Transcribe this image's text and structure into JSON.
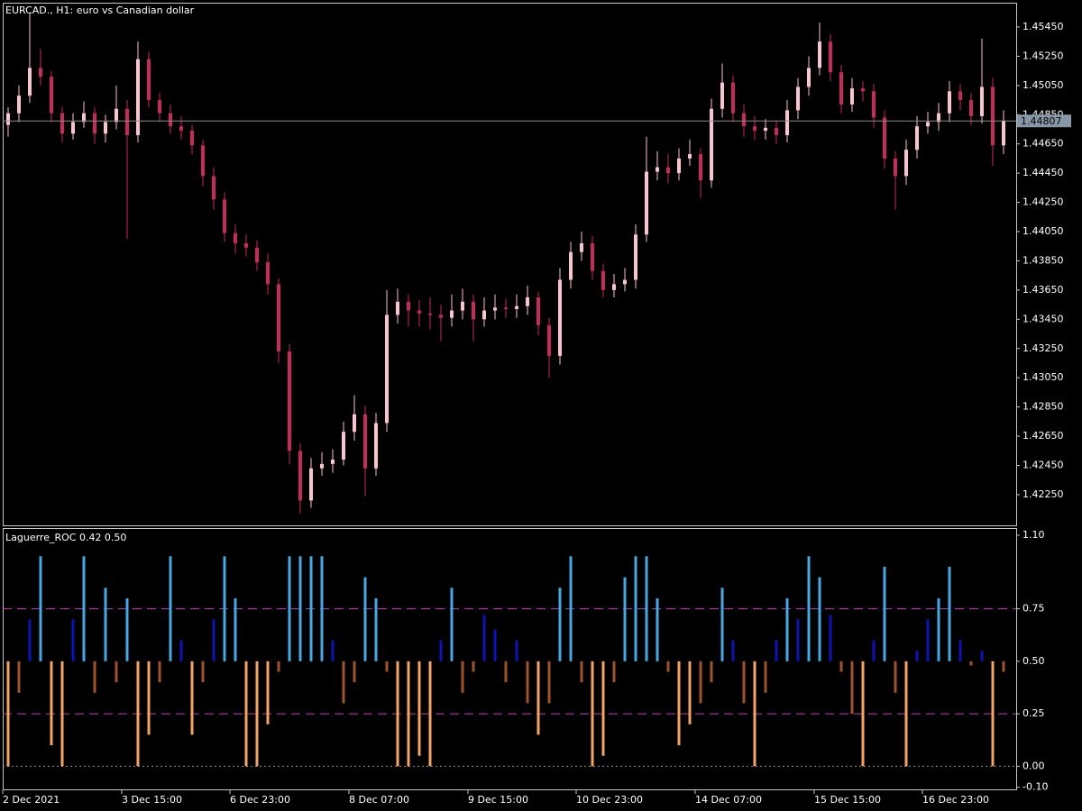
{
  "chart_data": [
    {
      "type": "candlestick",
      "title": "EURCAD., H1:  euro vs Canadian dollar",
      "categories": [
        "2 Dec 2021",
        null,
        null,
        null,
        null,
        null,
        null,
        null,
        null,
        null,
        null,
        "3 Dec 15:00",
        null,
        null,
        null,
        null,
        null,
        null,
        null,
        null,
        null,
        "6 Dec 23:00",
        null,
        null,
        null,
        null,
        null,
        null,
        null,
        null,
        null,
        null,
        "8 Dec 07:00",
        null,
        null,
        null,
        null,
        null,
        null,
        null,
        null,
        null,
        null,
        "9 Dec 15:00",
        null,
        null,
        null,
        null,
        null,
        null,
        null,
        null,
        null,
        "10 Dec 23:00",
        null,
        null,
        null,
        null,
        null,
        null,
        null,
        null,
        null,
        null,
        "14 Dec 07:00",
        null,
        null,
        null,
        null,
        null,
        null,
        null,
        null,
        null,
        null,
        "15 Dec 15:00",
        null,
        null,
        null,
        null,
        null,
        null,
        null,
        null,
        null,
        "16 Dec 23:00",
        null,
        null,
        null,
        null,
        null,
        null,
        null
      ],
      "open": [
        1.4478,
        1.4486,
        1.4498,
        1.4517,
        1.4511,
        1.4486,
        1.4472,
        1.448,
        1.4486,
        1.4472,
        1.448,
        1.4489,
        1.4471,
        1.4523,
        1.4495,
        1.4486,
        1.4477,
        1.4474,
        1.4464,
        1.4443,
        1.4427,
        1.4404,
        1.4397,
        1.4394,
        1.4384,
        1.4369,
        1.4323,
        1.4255,
        1.4221,
        1.4243,
        1.4246,
        1.4249,
        1.4268,
        1.428,
        1.4243,
        1.4274,
        1.4348,
        1.4357,
        1.4351,
        1.4349,
        1.4348,
        1.4346,
        1.4351,
        1.4357,
        1.4345,
        1.4351,
        1.4353,
        1.4352,
        1.4354,
        1.436,
        1.4341,
        1.432,
        1.4372,
        1.4391,
        1.4397,
        1.4378,
        1.4365,
        1.4369,
        1.4372,
        1.4403,
        1.4446,
        1.4449,
        1.4445,
        1.4455,
        1.4458,
        1.444,
        1.4489,
        1.4507,
        1.4486,
        1.4477,
        1.4474,
        1.4476,
        1.4471,
        1.4488,
        1.4504,
        1.4517,
        1.4535,
        1.4514,
        1.4492,
        1.4503,
        1.4501,
        1.4483,
        1.4455,
        1.4443,
        1.4461,
        1.4477,
        1.448,
        1.4486,
        1.4501,
        1.4495,
        1.4484,
        1.4504,
        1.4464
      ],
      "high": [
        1.449,
        1.4505,
        1.4555,
        1.453,
        1.4515,
        1.449,
        1.4486,
        1.4494,
        1.449,
        1.4485,
        1.4505,
        1.4495,
        1.4535,
        1.4528,
        1.45,
        1.4492,
        1.4484,
        1.4478,
        1.4468,
        1.4449,
        1.4432,
        1.441,
        1.4403,
        1.4399,
        1.439,
        1.4373,
        1.4328,
        1.426,
        1.425,
        1.4254,
        1.4256,
        1.4275,
        1.4293,
        1.4286,
        1.4281,
        1.4365,
        1.4366,
        1.4362,
        1.4358,
        1.436,
        1.4355,
        1.4362,
        1.4366,
        1.4362,
        1.436,
        1.4362,
        1.4359,
        1.4362,
        1.4368,
        1.4364,
        1.4346,
        1.438,
        1.4398,
        1.4405,
        1.4402,
        1.4383,
        1.4376,
        1.438,
        1.441,
        1.447,
        1.446,
        1.4458,
        1.4462,
        1.4468,
        1.4462,
        1.4496,
        1.452,
        1.4512,
        1.4492,
        1.4484,
        1.4482,
        1.4481,
        1.4495,
        1.451,
        1.4525,
        1.4548,
        1.454,
        1.4519,
        1.451,
        1.4508,
        1.4506,
        1.4488,
        1.446,
        1.4468,
        1.4484,
        1.4487,
        1.4493,
        1.4508,
        1.4506,
        1.45,
        1.4537,
        1.451,
        1.4488
      ],
      "low": [
        1.447,
        1.448,
        1.4493,
        1.4505,
        1.448,
        1.4466,
        1.4468,
        1.4476,
        1.4465,
        1.4466,
        1.4475,
        1.44,
        1.4466,
        1.449,
        1.448,
        1.4472,
        1.4468,
        1.4458,
        1.4436,
        1.442,
        1.4398,
        1.439,
        1.4388,
        1.4378,
        1.4362,
        1.4315,
        1.4246,
        1.4212,
        1.4216,
        1.4238,
        1.424,
        1.4245,
        1.4262,
        1.4224,
        1.4238,
        1.4268,
        1.4342,
        1.434,
        1.434,
        1.4338,
        1.433,
        1.434,
        1.4345,
        1.433,
        1.434,
        1.4345,
        1.4346,
        1.4346,
        1.4348,
        1.4334,
        1.4305,
        1.4314,
        1.4366,
        1.4385,
        1.4372,
        1.436,
        1.436,
        1.4364,
        1.4366,
        1.4398,
        1.444,
        1.4438,
        1.444,
        1.445,
        1.4428,
        1.4435,
        1.4483,
        1.448,
        1.447,
        1.4468,
        1.4468,
        1.4465,
        1.4466,
        1.4482,
        1.4498,
        1.4512,
        1.4508,
        1.4486,
        1.4487,
        1.4494,
        1.4476,
        1.4448,
        1.442,
        1.4437,
        1.4455,
        1.4472,
        1.4474,
        1.448,
        1.4488,
        1.4478,
        1.4479,
        1.445,
        1.4458
      ],
      "close": [
        1.4486,
        1.4498,
        1.4517,
        1.4511,
        1.4486,
        1.4472,
        1.448,
        1.4486,
        1.4472,
        1.448,
        1.4489,
        1.4471,
        1.4523,
        1.4495,
        1.4486,
        1.4477,
        1.4474,
        1.4464,
        1.4443,
        1.4427,
        1.4404,
        1.4397,
        1.4394,
        1.4384,
        1.4369,
        1.4323,
        1.4255,
        1.4221,
        1.4243,
        1.4246,
        1.4249,
        1.4268,
        1.428,
        1.4243,
        1.4274,
        1.4348,
        1.4357,
        1.4351,
        1.4349,
        1.4348,
        1.4346,
        1.4351,
        1.4357,
        1.4345,
        1.4351,
        1.4353,
        1.4352,
        1.4354,
        1.436,
        1.4341,
        1.432,
        1.4372,
        1.4391,
        1.4397,
        1.4378,
        1.4365,
        1.4369,
        1.4372,
        1.4403,
        1.4446,
        1.4449,
        1.4445,
        1.4455,
        1.4458,
        1.444,
        1.4489,
        1.4507,
        1.4486,
        1.4477,
        1.4474,
        1.4476,
        1.4471,
        1.4488,
        1.4504,
        1.4517,
        1.4535,
        1.4514,
        1.4492,
        1.4503,
        1.4501,
        1.4483,
        1.4455,
        1.4443,
        1.4461,
        1.4477,
        1.448,
        1.4486,
        1.4501,
        1.4495,
        1.4484,
        1.4504,
        1.4464,
        1.4481
      ],
      "bull_color": "#f7c4cf",
      "bear_color": "#c42a5b",
      "ylim": [
        1.4204,
        1.4561
      ],
      "yticks": [
        {
          "value": 1.4225,
          "label": "1.42250"
        },
        {
          "value": 1.4245,
          "label": "1.42450"
        },
        {
          "value": 1.4265,
          "label": "1.42650"
        },
        {
          "value": 1.4285,
          "label": "1.42850"
        },
        {
          "value": 1.4305,
          "label": "1.43050"
        },
        {
          "value": 1.4325,
          "label": "1.43250"
        },
        {
          "value": 1.4345,
          "label": "1.43450"
        },
        {
          "value": 1.4365,
          "label": "1.43650"
        },
        {
          "value": 1.4385,
          "label": "1.43850"
        },
        {
          "value": 1.4405,
          "label": "1.44050"
        },
        {
          "value": 1.4425,
          "label": "1.44250"
        },
        {
          "value": 1.4445,
          "label": "1.44450"
        },
        {
          "value": 1.4465,
          "label": "1.44650"
        },
        {
          "value": 1.4485,
          "label": "1.44850"
        },
        {
          "value": 1.4505,
          "label": "1.45050"
        },
        {
          "value": 1.4525,
          "label": "1.45250"
        },
        {
          "value": 1.4545,
          "label": "1.45450"
        }
      ],
      "current_price": 1.44807,
      "grid": false
    },
    {
      "type": "bar",
      "title": "Laguerre_ROC 0.42 0.50",
      "values": [
        0.0,
        0.35,
        0.7,
        1.0,
        0.1,
        0.0,
        0.7,
        1.0,
        0.35,
        0.85,
        0.4,
        0.8,
        0.0,
        0.15,
        0.4,
        1.0,
        0.6,
        0.15,
        0.4,
        0.7,
        1.0,
        0.8,
        0.0,
        0.0,
        0.2,
        0.45,
        1.0,
        1.0,
        1.0,
        1.0,
        0.6,
        0.3,
        0.4,
        0.9,
        0.8,
        0.45,
        0.0,
        0.0,
        0.05,
        0.0,
        0.6,
        0.85,
        0.35,
        0.45,
        0.72,
        0.65,
        0.4,
        0.6,
        0.3,
        0.15,
        0.3,
        0.85,
        1.0,
        0.4,
        0.0,
        0.05,
        0.4,
        0.9,
        1.0,
        1.0,
        0.8,
        0.45,
        0.1,
        0.2,
        0.3,
        0.4,
        0.85,
        0.6,
        0.3,
        0.0,
        0.35,
        0.6,
        0.8,
        0.7,
        1.0,
        0.9,
        0.72,
        0.45,
        0.25,
        0.0,
        0.6,
        0.95,
        0.35,
        0.0,
        0.55,
        0.7,
        0.8,
        0.95,
        0.6,
        0.48,
        0.55,
        0.0,
        0.45
      ],
      "baseline": 0.5,
      "levels": [
        0.25,
        0.75
      ],
      "level_color": "#c23cc8",
      "zero_line": 0,
      "colors": [
        "#f4a460",
        "#a0522d",
        "#0c14b4",
        "#45a9e2"
      ],
      "ylim": [
        -0.11,
        1.13
      ],
      "yticks": [
        {
          "value": 1.1,
          "label": "1.10"
        },
        0.75,
        {
          "value": 0.5,
          "label": "0.50"
        },
        0.25,
        {
          "value": 0,
          "label": "0.00"
        },
        {
          "value": -0.1,
          "label": "-0.10"
        }
      ],
      "grid": false
    }
  ]
}
